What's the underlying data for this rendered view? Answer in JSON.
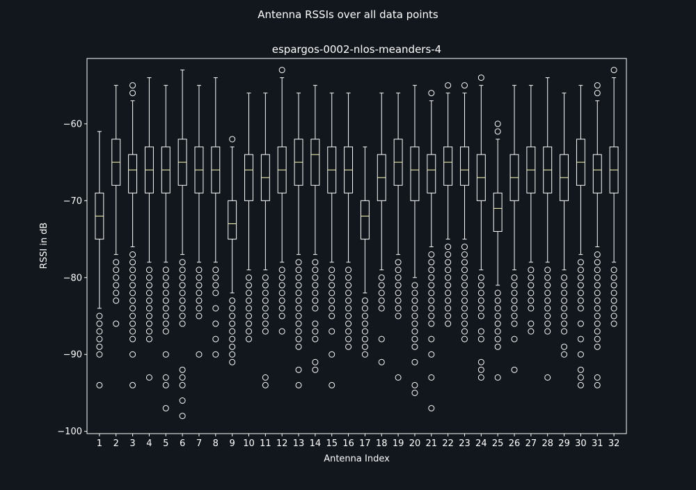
{
  "figure": {
    "suptitle": "Antenna RSSIs over all data points"
  },
  "chart_data": {
    "type": "box",
    "title": "espargos-0002-nlos-meanders-4",
    "xlabel": "Antenna Index",
    "ylabel": "RSSI in dB",
    "ylim": [
      -100.3,
      -51.5
    ],
    "yticks": [
      -100,
      -90,
      -80,
      -70,
      -60
    ],
    "categories": [
      "1",
      "2",
      "3",
      "4",
      "5",
      "6",
      "7",
      "8",
      "9",
      "10",
      "11",
      "12",
      "13",
      "14",
      "15",
      "16",
      "17",
      "18",
      "19",
      "20",
      "21",
      "22",
      "23",
      "24",
      "25",
      "26",
      "27",
      "28",
      "29",
      "30",
      "31",
      "32"
    ],
    "grid": false,
    "colors": {
      "background": "#11171d",
      "box": "#ffffff",
      "median": "#ffffbb"
    },
    "boxes": [
      {
        "whislo": -84,
        "q1": -75,
        "med": -72,
        "q3": -69,
        "whishi": -61,
        "fliers": [
          -85,
          -86,
          -87,
          -88,
          -89,
          -90,
          -94
        ]
      },
      {
        "whislo": -77,
        "q1": -68,
        "med": -65,
        "q3": -62,
        "whishi": -55,
        "fliers": [
          -78,
          -79,
          -80,
          -81,
          -82,
          -83,
          -86
        ]
      },
      {
        "whislo": -76,
        "q1": -69,
        "med": -66,
        "q3": -64,
        "whishi": -57,
        "fliers": [
          -55,
          -56,
          -77,
          -78,
          -79,
          -80,
          -81,
          -82,
          -83,
          -84,
          -85,
          -86,
          -87,
          -88,
          -90,
          -94
        ]
      },
      {
        "whislo": -78,
        "q1": -69,
        "med": -66,
        "q3": -63,
        "whishi": -54,
        "fliers": [
          -79,
          -80,
          -81,
          -82,
          -83,
          -84,
          -85,
          -86,
          -87,
          -88,
          -93
        ]
      },
      {
        "whislo": -78,
        "q1": -69,
        "med": -66,
        "q3": -63,
        "whishi": -55,
        "fliers": [
          -79,
          -80,
          -81,
          -82,
          -83,
          -84,
          -85,
          -86,
          -87,
          -90,
          -93,
          -94,
          -97
        ]
      },
      {
        "whislo": -77,
        "q1": -68,
        "med": -65,
        "q3": -62,
        "whishi": -53,
        "fliers": [
          -78,
          -79,
          -80,
          -81,
          -82,
          -83,
          -84,
          -85,
          -86,
          -92,
          -93,
          -94,
          -96,
          -98
        ]
      },
      {
        "whislo": -78,
        "q1": -69,
        "med": -66,
        "q3": -63,
        "whishi": -55,
        "fliers": [
          -79,
          -80,
          -81,
          -82,
          -83,
          -84,
          -85,
          -90
        ]
      },
      {
        "whislo": -78,
        "q1": -69,
        "med": -66,
        "q3": -63,
        "whishi": -54,
        "fliers": [
          -79,
          -80,
          -81,
          -82,
          -84,
          -86,
          -88,
          -90
        ]
      },
      {
        "whislo": -82,
        "q1": -75,
        "med": -73,
        "q3": -70,
        "whishi": -63,
        "fliers": [
          -62,
          -83,
          -84,
          -85,
          -86,
          -87,
          -88,
          -89,
          -90,
          -91
        ]
      },
      {
        "whislo": -79,
        "q1": -70,
        "med": -66,
        "q3": -64,
        "whishi": -56,
        "fliers": [
          -80,
          -81,
          -82,
          -83,
          -84,
          -85,
          -86,
          -87,
          -88
        ]
      },
      {
        "whislo": -79,
        "q1": -70,
        "med": -67,
        "q3": -64,
        "whishi": -56,
        "fliers": [
          -80,
          -81,
          -82,
          -83,
          -84,
          -85,
          -86,
          -87,
          -93,
          -94
        ]
      },
      {
        "whislo": -78,
        "q1": -69,
        "med": -66,
        "q3": -63,
        "whishi": -54,
        "fliers": [
          -53,
          -79,
          -80,
          -81,
          -82,
          -83,
          -84,
          -85,
          -87
        ]
      },
      {
        "whislo": -77,
        "q1": -68,
        "med": -65,
        "q3": -62,
        "whishi": -56,
        "fliers": [
          -78,
          -79,
          -80,
          -81,
          -82,
          -83,
          -84,
          -85,
          -86,
          -87,
          -88,
          -89,
          -92,
          -94
        ]
      },
      {
        "whislo": -77,
        "q1": -68,
        "med": -64,
        "q3": -62,
        "whishi": -55,
        "fliers": [
          -78,
          -79,
          -80,
          -81,
          -82,
          -83,
          -84,
          -86,
          -87,
          -88,
          -91,
          -92
        ]
      },
      {
        "whislo": -78,
        "q1": -69,
        "med": -66,
        "q3": -63,
        "whishi": -56,
        "fliers": [
          -79,
          -80,
          -81,
          -82,
          -83,
          -84,
          -85,
          -87,
          -90,
          -94
        ]
      },
      {
        "whislo": -78,
        "q1": -69,
        "med": -66,
        "q3": -63,
        "whishi": -56,
        "fliers": [
          -79,
          -80,
          -81,
          -82,
          -83,
          -84,
          -85,
          -86,
          -87,
          -88,
          -89
        ]
      },
      {
        "whislo": -82,
        "q1": -75,
        "med": -72,
        "q3": -70,
        "whishi": -63,
        "fliers": [
          -83,
          -84,
          -85,
          -86,
          -87,
          -88,
          -89,
          -90
        ]
      },
      {
        "whislo": -79,
        "q1": -70,
        "med": -67,
        "q3": -64,
        "whishi": -56,
        "fliers": [
          -80,
          -81,
          -82,
          -83,
          -84,
          -88,
          -91
        ]
      },
      {
        "whislo": -77,
        "q1": -68,
        "med": -65,
        "q3": -62,
        "whishi": -56,
        "fliers": [
          -78,
          -79,
          -80,
          -81,
          -82,
          -83,
          -84,
          -85,
          -93
        ]
      },
      {
        "whislo": -80,
        "q1": -70,
        "med": -66,
        "q3": -63,
        "whishi": -55,
        "fliers": [
          -81,
          -82,
          -83,
          -84,
          -85,
          -86,
          -87,
          -88,
          -89,
          -91,
          -94,
          -95
        ]
      },
      {
        "whislo": -76,
        "q1": -69,
        "med": -66,
        "q3": -64,
        "whishi": -57,
        "fliers": [
          -56,
          -77,
          -78,
          -79,
          -80,
          -81,
          -82,
          -83,
          -84,
          -85,
          -86,
          -88,
          -90,
          -93,
          -97
        ]
      },
      {
        "whislo": -75,
        "q1": -68,
        "med": -65,
        "q3": -63,
        "whishi": -56,
        "fliers": [
          -55,
          -76,
          -77,
          -78,
          -79,
          -80,
          -81,
          -82,
          -83,
          -84,
          -85,
          -86
        ]
      },
      {
        "whislo": -75,
        "q1": -68,
        "med": -66,
        "q3": -63,
        "whishi": -56,
        "fliers": [
          -55,
          -76,
          -77,
          -78,
          -79,
          -80,
          -81,
          -82,
          -83,
          -84,
          -85,
          -86,
          -87,
          -88
        ]
      },
      {
        "whislo": -79,
        "q1": -70,
        "med": -67,
        "q3": -64,
        "whishi": -55,
        "fliers": [
          -54,
          -80,
          -81,
          -82,
          -83,
          -84,
          -85,
          -87,
          -88,
          -91,
          -92,
          -93
        ]
      },
      {
        "whislo": -81,
        "q1": -74,
        "med": -71,
        "q3": -69,
        "whishi": -62,
        "fliers": [
          -60,
          -61,
          -82,
          -83,
          -84,
          -85,
          -86,
          -87,
          -88,
          -89,
          -93
        ]
      },
      {
        "whislo": -79,
        "q1": -70,
        "med": -67,
        "q3": -64,
        "whishi": -55,
        "fliers": [
          -80,
          -81,
          -82,
          -83,
          -84,
          -85,
          -86,
          -88,
          -92
        ]
      },
      {
        "whislo": -78,
        "q1": -69,
        "med": -66,
        "q3": -63,
        "whishi": -55,
        "fliers": [
          -79,
          -80,
          -81,
          -82,
          -83,
          -84,
          -86,
          -87
        ]
      },
      {
        "whislo": -78,
        "q1": -69,
        "med": -66,
        "q3": -63,
        "whishi": -54,
        "fliers": [
          -79,
          -80,
          -81,
          -82,
          -83,
          -84,
          -85,
          -86,
          -87,
          -93
        ]
      },
      {
        "whislo": -79,
        "q1": -70,
        "med": -67,
        "q3": -64,
        "whishi": -56,
        "fliers": [
          -80,
          -81,
          -82,
          -83,
          -84,
          -85,
          -86,
          -87,
          -89,
          -90
        ]
      },
      {
        "whislo": -77,
        "q1": -68,
        "med": -65,
        "q3": -62,
        "whishi": -55,
        "fliers": [
          -78,
          -79,
          -80,
          -81,
          -82,
          -83,
          -84,
          -86,
          -88,
          -90,
          -92,
          -93,
          -94
        ]
      },
      {
        "whislo": -76,
        "q1": -69,
        "med": -66,
        "q3": -64,
        "whishi": -57,
        "fliers": [
          -55,
          -56,
          -77,
          -78,
          -79,
          -80,
          -81,
          -82,
          -83,
          -84,
          -85,
          -86,
          -87,
          -88,
          -89,
          -93,
          -94
        ]
      },
      {
        "whislo": -78,
        "q1": -69,
        "med": -66,
        "q3": -63,
        "whishi": -54,
        "fliers": [
          -53,
          -79,
          -80,
          -81,
          -82,
          -83,
          -84,
          -85,
          -86
        ]
      }
    ]
  }
}
